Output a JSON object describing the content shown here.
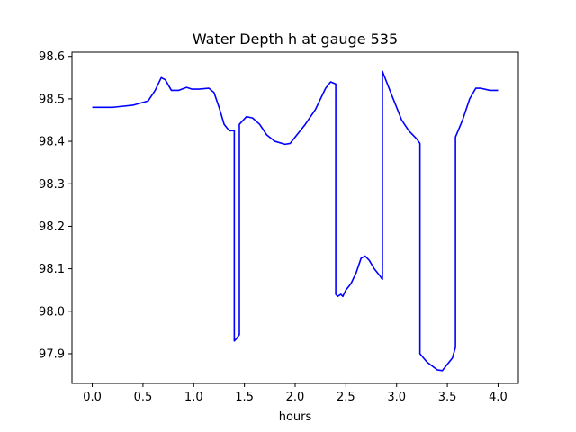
{
  "chart_data": {
    "type": "line",
    "title": "Water Depth h at gauge 535",
    "xlabel": "hours",
    "ylabel": "",
    "xlim": [
      -0.2,
      4.2
    ],
    "ylim": [
      97.83,
      98.61
    ],
    "xticks": [
      0.0,
      0.5,
      1.0,
      1.5,
      2.0,
      2.5,
      3.0,
      3.5,
      4.0
    ],
    "xtick_labels": [
      "0.0",
      "0.5",
      "1.0",
      "1.5",
      "2.0",
      "2.5",
      "3.0",
      "3.5",
      "4.0"
    ],
    "yticks": [
      97.9,
      98.0,
      98.1,
      98.2,
      98.3,
      98.4,
      98.5,
      98.6
    ],
    "ytick_labels": [
      "97.9",
      "98.0",
      "98.1",
      "98.2",
      "98.3",
      "98.4",
      "98.5",
      "98.6"
    ],
    "grid": false,
    "line_color": "#0000ff",
    "series": [
      {
        "x": [
          0.0,
          0.2,
          0.4,
          0.55,
          0.62,
          0.68,
          0.72,
          0.78,
          0.85,
          0.93,
          0.98,
          1.05,
          1.15,
          1.2,
          1.25,
          1.3,
          1.35,
          1.4,
          1.4,
          1.42,
          1.45,
          1.45,
          1.52,
          1.58,
          1.65,
          1.72,
          1.8,
          1.9,
          1.95,
          2.0,
          2.1,
          2.2,
          2.3,
          2.35,
          2.4,
          2.4,
          2.42,
          2.45,
          2.47,
          2.5,
          2.55,
          2.6,
          2.65,
          2.69,
          2.73,
          2.78,
          2.83,
          2.86,
          2.86,
          2.95,
          3.05,
          3.12,
          3.2,
          3.23,
          3.23,
          3.3,
          3.4,
          3.45,
          3.5,
          3.55,
          3.58,
          3.58,
          3.65,
          3.72,
          3.78,
          3.83,
          3.92,
          4.0
        ],
        "y": [
          98.48,
          98.48,
          98.485,
          98.495,
          98.52,
          98.55,
          98.545,
          98.52,
          98.52,
          98.527,
          98.523,
          98.523,
          98.525,
          98.515,
          98.48,
          98.44,
          98.425,
          98.425,
          97.93,
          97.935,
          97.945,
          98.44,
          98.458,
          98.455,
          98.44,
          98.415,
          98.4,
          98.393,
          98.395,
          98.41,
          98.44,
          98.475,
          98.525,
          98.54,
          98.535,
          98.04,
          98.035,
          98.04,
          98.035,
          98.05,
          98.065,
          98.09,
          98.125,
          98.13,
          98.12,
          98.1,
          98.085,
          98.075,
          98.565,
          98.51,
          98.45,
          98.425,
          98.405,
          98.395,
          97.9,
          97.88,
          97.862,
          97.86,
          97.875,
          97.89,
          97.915,
          98.41,
          98.45,
          98.5,
          98.525,
          98.525,
          98.52,
          98.52
        ]
      }
    ]
  }
}
